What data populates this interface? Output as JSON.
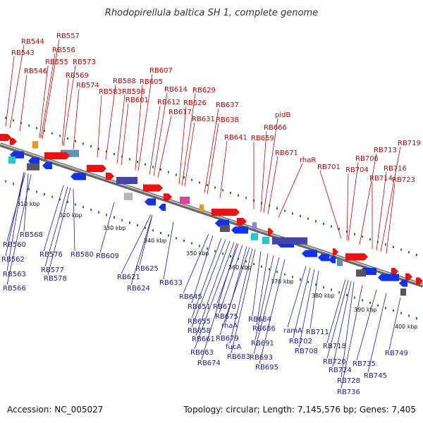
{
  "title": "Rhodopirellula baltica SH 1, complete genome",
  "footer": {
    "accession": "Accession: NC_005027",
    "info": "Topology: circular; Length: 7,145,576 bp; Genes: 7,405"
  },
  "colors": {
    "top_label": "#cc0000",
    "bottom_label": "#1a1aa0",
    "forward_gene": "#ee1111",
    "reverse_gene": "#1133ee",
    "backbone": "#888888",
    "tick": "#118811"
  },
  "scale_ticks": [
    "310 kbp",
    "320 kbp",
    "330 kbp",
    "340 kbp",
    "350 kbp",
    "360 kbp",
    "370 kbp",
    "380 kbp",
    "390 kbp",
    "400 kbp"
  ],
  "top_labels": [
    "RB544",
    "RB543",
    "RB546",
    "RB557",
    "RB556",
    "RB555",
    "RB573",
    "RB569",
    "RB574",
    "RB588",
    "RB583",
    "RB598",
    "RB601",
    "RB607",
    "RB605",
    "RB614",
    "RB612",
    "RB617",
    "RB629",
    "RB626",
    "RB631",
    "RB637",
    "RB638",
    "RB641",
    "pldB",
    "RB666",
    "RB659",
    "RB671",
    "rhaR",
    "RB701",
    "RB706",
    "RB704",
    "RB713",
    "RB719",
    "RB716",
    "RB714",
    "RB723"
  ],
  "bottom_labels": [
    "RB568",
    "RB560",
    "RB562",
    "RB563",
    "RB566",
    "RB576",
    "RB577",
    "RB578",
    "RB580",
    "RB609",
    "RB621",
    "RB624",
    "RB625",
    "RB633",
    "RB645",
    "RB651",
    "RB655",
    "RB658",
    "RB661",
    "RB663",
    "RB674",
    "RB670",
    "RB675",
    "rhaA",
    "RB679",
    "fucA",
    "RB683",
    "RB684",
    "RB686",
    "RB691",
    "RB693",
    "RB695",
    "ramA",
    "RB702",
    "RB708",
    "RB711",
    "RB718",
    "RB720",
    "RB724",
    "RB728",
    "RB735",
    "RB736",
    "RB745",
    "RB749"
  ]
}
